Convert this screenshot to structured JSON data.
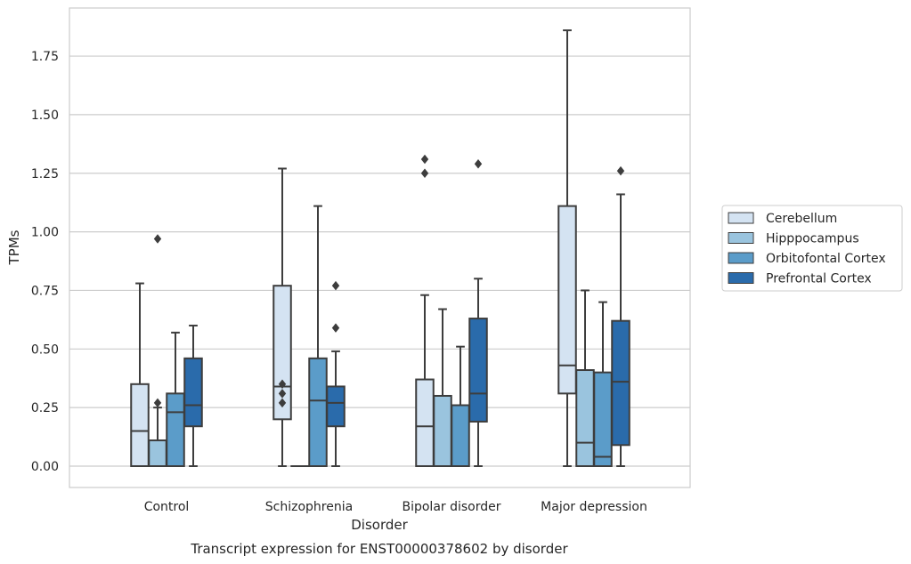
{
  "chart_data": {
    "type": "boxplot",
    "title": "",
    "caption": "Transcript expression for ENST00000378602 by disorder",
    "xlabel": "Disorder",
    "ylabel": "TPMs",
    "ylim": [
      -0.09,
      1.95
    ],
    "yticks": [
      0.0,
      0.25,
      0.5,
      0.75,
      1.0,
      1.25,
      1.5,
      1.75
    ],
    "ytick_labels": [
      "0.00",
      "0.25",
      "0.50",
      "0.75",
      "1.00",
      "1.25",
      "1.50",
      "1.75"
    ],
    "grid": "horizontal",
    "legend_position": "right",
    "categories": [
      "Control",
      "Schizophrenia",
      "Bipolar disorder",
      "Major depression"
    ],
    "series": [
      {
        "name": "Cerebellum",
        "color": "#d4e3f2",
        "boxes": [
          {
            "min": 0.0,
            "q1": 0.0,
            "median": 0.15,
            "q3": 0.35,
            "max": 0.78,
            "outliers": []
          },
          {
            "min": 0.0,
            "q1": 0.2,
            "median": 0.34,
            "q3": 0.77,
            "max": 1.27,
            "outliers": [
              0.27,
              0.31,
              0.35
            ]
          },
          {
            "min": 0.0,
            "q1": 0.0,
            "median": 0.17,
            "q3": 0.37,
            "max": 0.73,
            "outliers": [
              1.25,
              1.31
            ]
          },
          {
            "min": 0.0,
            "q1": 0.31,
            "median": 0.43,
            "q3": 1.11,
            "max": 1.86,
            "outliers": []
          }
        ]
      },
      {
        "name": "Hipppocampus",
        "color": "#9ac4de",
        "boxes": [
          {
            "min": 0.0,
            "q1": 0.0,
            "median": 0.0,
            "q3": 0.11,
            "max": 0.25,
            "outliers": [
              0.27,
              0.97
            ]
          },
          {
            "min": 0.0,
            "q1": 0.0,
            "median": 0.0,
            "q3": 0.0,
            "max": 0.0,
            "outliers": []
          },
          {
            "min": 0.0,
            "q1": 0.0,
            "median": 0.0,
            "q3": 0.3,
            "max": 0.67,
            "outliers": []
          },
          {
            "min": 0.0,
            "q1": 0.0,
            "median": 0.1,
            "q3": 0.41,
            "max": 0.75,
            "outliers": []
          }
        ]
      },
      {
        "name": "Orbitofontal Cortex",
        "color": "#5b9cc9",
        "boxes": [
          {
            "min": 0.0,
            "q1": 0.0,
            "median": 0.23,
            "q3": 0.31,
            "max": 0.57,
            "outliers": []
          },
          {
            "min": 0.0,
            "q1": 0.0,
            "median": 0.28,
            "q3": 0.46,
            "max": 1.11,
            "outliers": []
          },
          {
            "min": 0.0,
            "q1": 0.0,
            "median": 0.0,
            "q3": 0.26,
            "max": 0.51,
            "outliers": []
          },
          {
            "min": 0.0,
            "q1": 0.0,
            "median": 0.04,
            "q3": 0.4,
            "max": 0.7,
            "outliers": []
          }
        ]
      },
      {
        "name": "Prefrontal Cortex",
        "color": "#2a6bab",
        "boxes": [
          {
            "min": 0.0,
            "q1": 0.17,
            "median": 0.26,
            "q3": 0.46,
            "max": 0.6,
            "outliers": []
          },
          {
            "min": 0.0,
            "q1": 0.17,
            "median": 0.27,
            "q3": 0.34,
            "max": 0.49,
            "outliers": [
              0.59,
              0.77
            ]
          },
          {
            "min": 0.0,
            "q1": 0.19,
            "median": 0.31,
            "q3": 0.63,
            "max": 0.8,
            "outliers": [
              1.29
            ]
          },
          {
            "min": 0.0,
            "q1": 0.09,
            "median": 0.36,
            "q3": 0.62,
            "max": 1.16,
            "outliers": [
              1.26
            ]
          }
        ]
      }
    ]
  }
}
